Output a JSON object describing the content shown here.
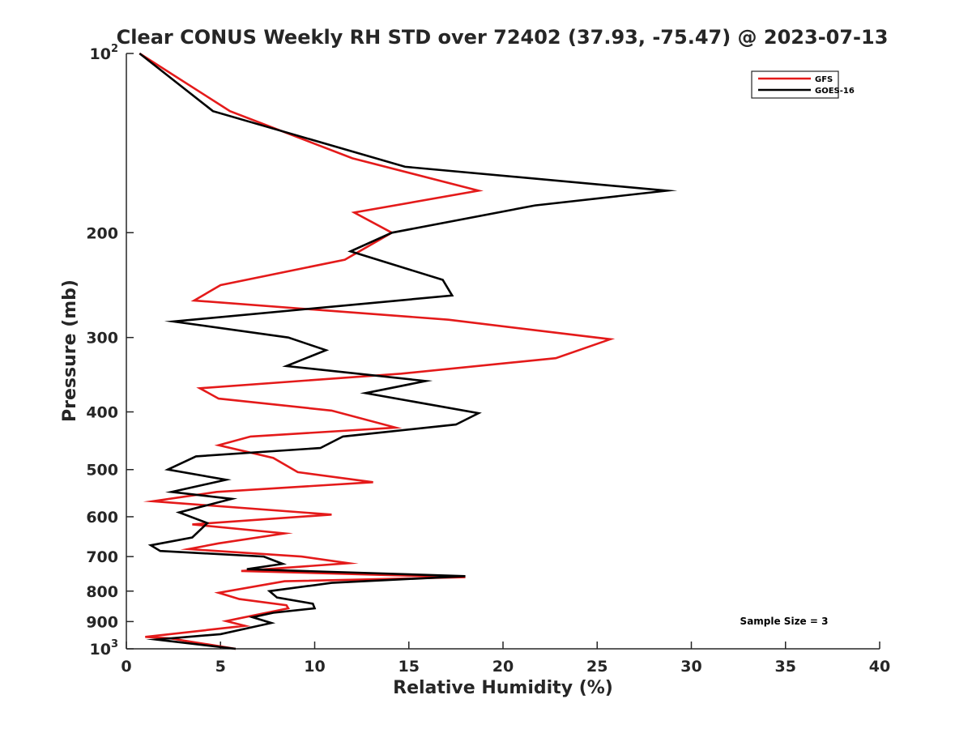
{
  "chart_data": {
    "type": "line",
    "title": "Clear CONUS Weekly RH STD over 72402 (37.93, -75.47) @ 2023-07-13",
    "xlabel": "Relative Humidity (%)",
    "ylabel": "Pressure (mb)",
    "xlim": [
      0,
      40
    ],
    "ylim": [
      100,
      1000
    ],
    "yscale": "log",
    "y_reversed": true,
    "x_ticks": [
      "0",
      "5",
      "10",
      "15",
      "20",
      "25",
      "30",
      "35",
      "40"
    ],
    "y_ticks": [
      {
        "value": 100,
        "base": "10",
        "exp": "2"
      },
      {
        "value": 200,
        "label": "200"
      },
      {
        "value": 300,
        "label": "300"
      },
      {
        "value": 400,
        "label": "400"
      },
      {
        "value": 500,
        "label": "500"
      },
      {
        "value": 600,
        "label": "600"
      },
      {
        "value": 700,
        "label": "700"
      },
      {
        "value": 800,
        "label": "800"
      },
      {
        "value": 900,
        "label": "900"
      },
      {
        "value": 1000,
        "base": "10",
        "exp": "3"
      }
    ],
    "legend": {
      "position": "top-right",
      "entries": [
        "GFS",
        "GOES-16"
      ]
    },
    "annotation": "Sample Size = 3",
    "series": [
      {
        "name": "GFS",
        "color": "#e41a1a",
        "points": [
          [
            0.7,
            100
          ],
          [
            5.5,
            125
          ],
          [
            12.0,
            150
          ],
          [
            18.7,
            170
          ],
          [
            12.1,
            185
          ],
          [
            14.1,
            200
          ],
          [
            11.6,
            222
          ],
          [
            5.0,
            245
          ],
          [
            3.6,
            260
          ],
          [
            17.1,
            280
          ],
          [
            25.7,
            302
          ],
          [
            22.8,
            325
          ],
          [
            14.6,
            345
          ],
          [
            3.9,
            365
          ],
          [
            4.9,
            380
          ],
          [
            10.9,
            398
          ],
          [
            14.3,
            425
          ],
          [
            6.6,
            440
          ],
          [
            4.9,
            455
          ],
          [
            7.8,
            478
          ],
          [
            9.1,
            505
          ],
          [
            13.1,
            525
          ],
          [
            4.8,
            545
          ],
          [
            1.4,
            565
          ],
          [
            10.9,
            595
          ],
          [
            3.5,
            618
          ],
          [
            8.4,
            640
          ],
          [
            4.9,
            665
          ],
          [
            3.3,
            680
          ],
          [
            9.3,
            700
          ],
          [
            11.8,
            718
          ],
          [
            6.1,
            740
          ],
          [
            18.0,
            758
          ],
          [
            8.4,
            770
          ],
          [
            4.9,
            805
          ],
          [
            6.0,
            825
          ],
          [
            8.5,
            845
          ],
          [
            8.6,
            855
          ],
          [
            5.3,
            898
          ],
          [
            6.3,
            915
          ],
          [
            1.0,
            955
          ],
          [
            2.3,
            960
          ],
          [
            5.8,
            1000
          ]
        ]
      },
      {
        "name": "GOES-16",
        "color": "#000000",
        "points": [
          [
            0.7,
            100
          ],
          [
            4.6,
            125
          ],
          [
            14.8,
            155
          ],
          [
            28.7,
            170
          ],
          [
            21.7,
            180
          ],
          [
            14.1,
            200
          ],
          [
            11.9,
            215
          ],
          [
            16.8,
            240
          ],
          [
            17.3,
            255
          ],
          [
            2.5,
            282
          ],
          [
            8.6,
            300
          ],
          [
            10.6,
            315
          ],
          [
            8.5,
            335
          ],
          [
            15.9,
            355
          ],
          [
            12.7,
            372
          ],
          [
            18.7,
            402
          ],
          [
            17.5,
            420
          ],
          [
            11.5,
            440
          ],
          [
            10.3,
            460
          ],
          [
            3.7,
            475
          ],
          [
            2.2,
            500
          ],
          [
            5.3,
            520
          ],
          [
            2.4,
            545
          ],
          [
            5.6,
            560
          ],
          [
            2.8,
            590
          ],
          [
            4.3,
            615
          ],
          [
            3.5,
            650
          ],
          [
            1.3,
            670
          ],
          [
            1.8,
            685
          ],
          [
            7.3,
            700
          ],
          [
            8.3,
            720
          ],
          [
            6.4,
            735
          ],
          [
            18.0,
            755
          ],
          [
            10.9,
            775
          ],
          [
            7.6,
            800
          ],
          [
            8.0,
            820
          ],
          [
            9.9,
            840
          ],
          [
            10.0,
            855
          ],
          [
            7.8,
            870
          ],
          [
            6.7,
            885
          ],
          [
            7.7,
            905
          ],
          [
            5.0,
            945
          ],
          [
            1.6,
            965
          ],
          [
            5.8,
            1000
          ]
        ]
      }
    ]
  }
}
